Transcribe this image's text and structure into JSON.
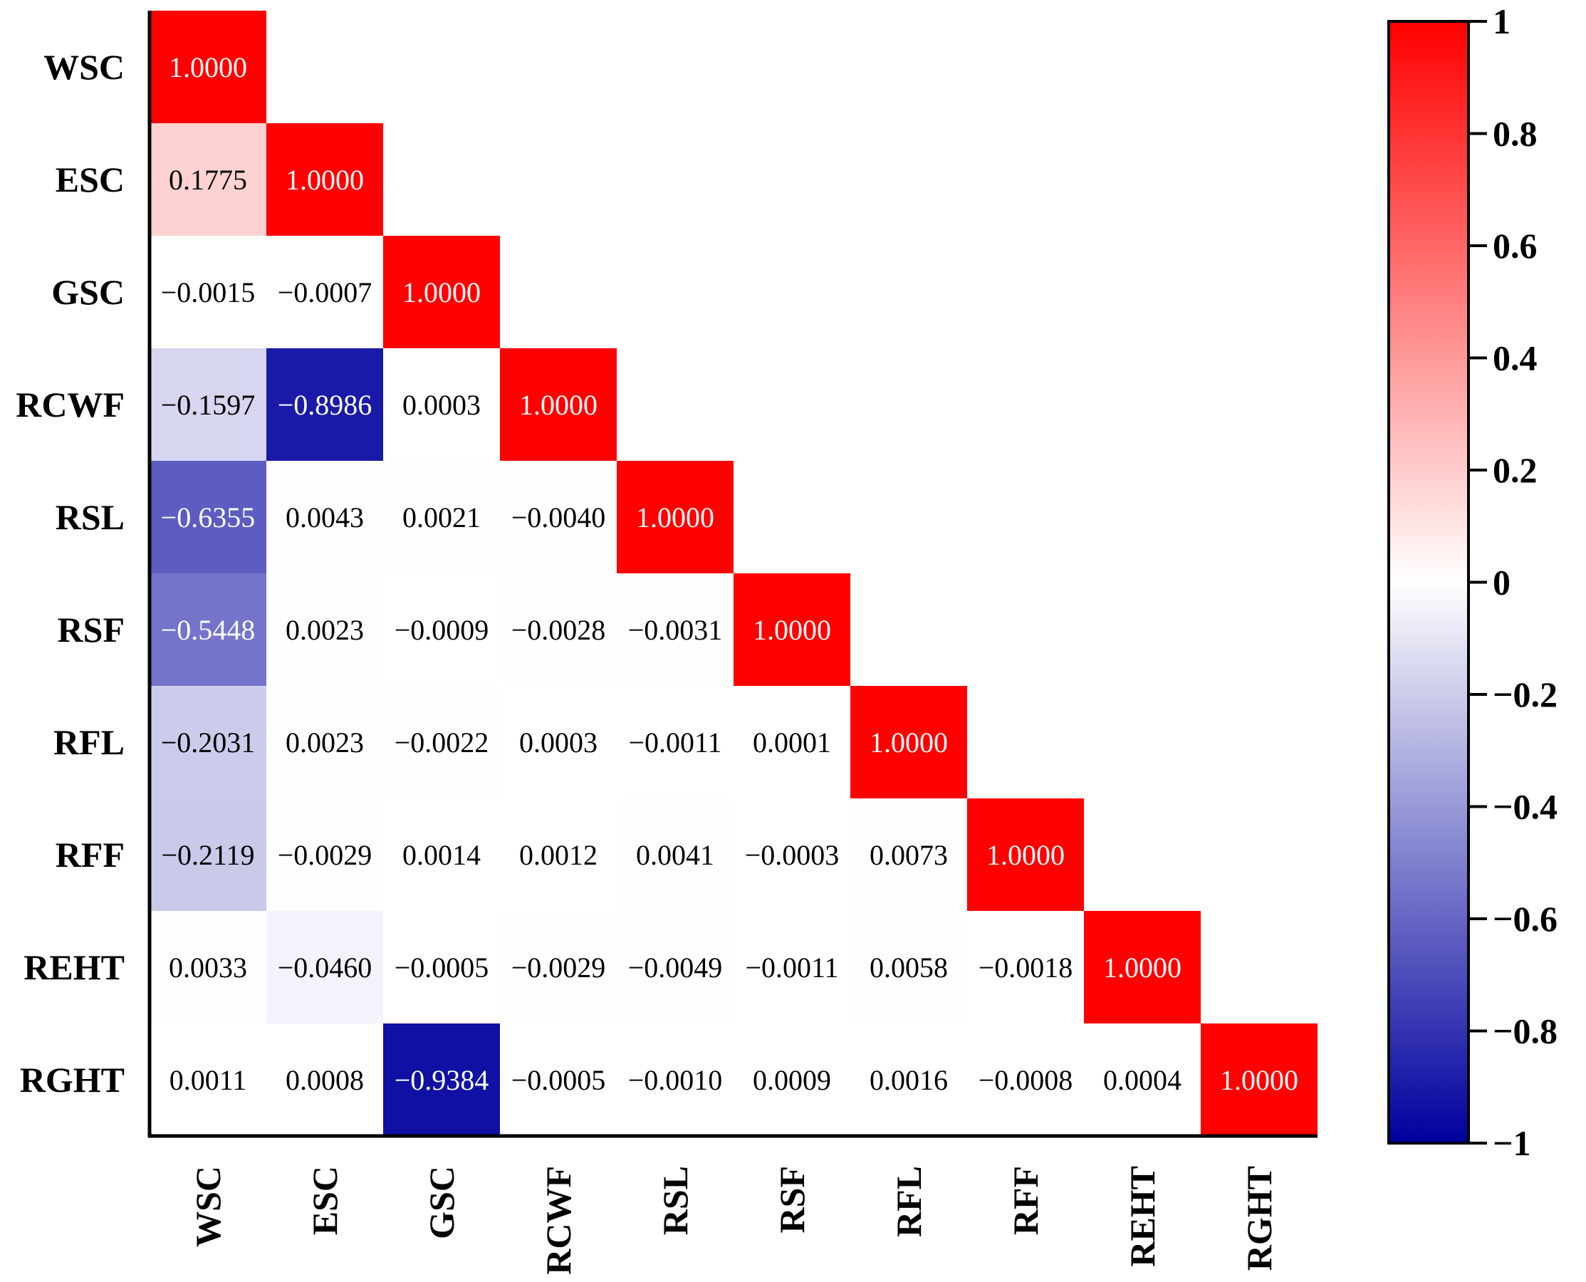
{
  "chart_data": {
    "type": "heatmap",
    "subtype": "lower-triangular correlation matrix",
    "variables": [
      "WSC",
      "ESC",
      "GSC",
      "RCWF",
      "RSL",
      "RSF",
      "RFL",
      "RFF",
      "REHT",
      "RGHT"
    ],
    "matrix": [
      [
        "1.0000"
      ],
      [
        "0.1775",
        "1.0000"
      ],
      [
        "−0.0015",
        "−0.0007",
        "1.0000"
      ],
      [
        "−0.1597",
        "−0.8986",
        "0.0003",
        "1.0000"
      ],
      [
        "−0.6355",
        "0.0043",
        "0.0021",
        "−0.0040",
        "1.0000"
      ],
      [
        "−0.5448",
        "0.0023",
        "−0.0009",
        "−0.0028",
        "−0.0031",
        "1.0000"
      ],
      [
        "−0.2031",
        "0.0023",
        "−0.0022",
        "0.0003",
        "−0.0011",
        "0.0001",
        "1.0000"
      ],
      [
        "−0.2119",
        "−0.0029",
        "0.0014",
        "0.0012",
        "0.0041",
        "−0.0003",
        "0.0073",
        "1.0000"
      ],
      [
        "0.0033",
        "−0.0460",
        "−0.0005",
        "−0.0029",
        "−0.0049",
        "−0.0011",
        "0.0058",
        "−0.0018",
        "1.0000"
      ],
      [
        "0.0011",
        "0.0008",
        "−0.9384",
        "−0.0005",
        "−0.0010",
        "0.0009",
        "0.0016",
        "−0.0008",
        "0.0004",
        "1.0000"
      ]
    ],
    "colorbar": {
      "range": [
        -1,
        1
      ],
      "ticks": [
        "1",
        "0.8",
        "0.6",
        "0.4",
        "0.2",
        "0",
        "−0.2",
        "−0.4",
        "−0.6",
        "−0.8",
        "−1"
      ],
      "tick_values": [
        1,
        0.8,
        0.6,
        0.4,
        0.2,
        0,
        -0.2,
        -0.4,
        -0.6,
        -0.8,
        -1
      ]
    },
    "colors": {
      "positive": "#ff0000",
      "neutral": "#ffffff",
      "negative": "#00009e"
    }
  }
}
